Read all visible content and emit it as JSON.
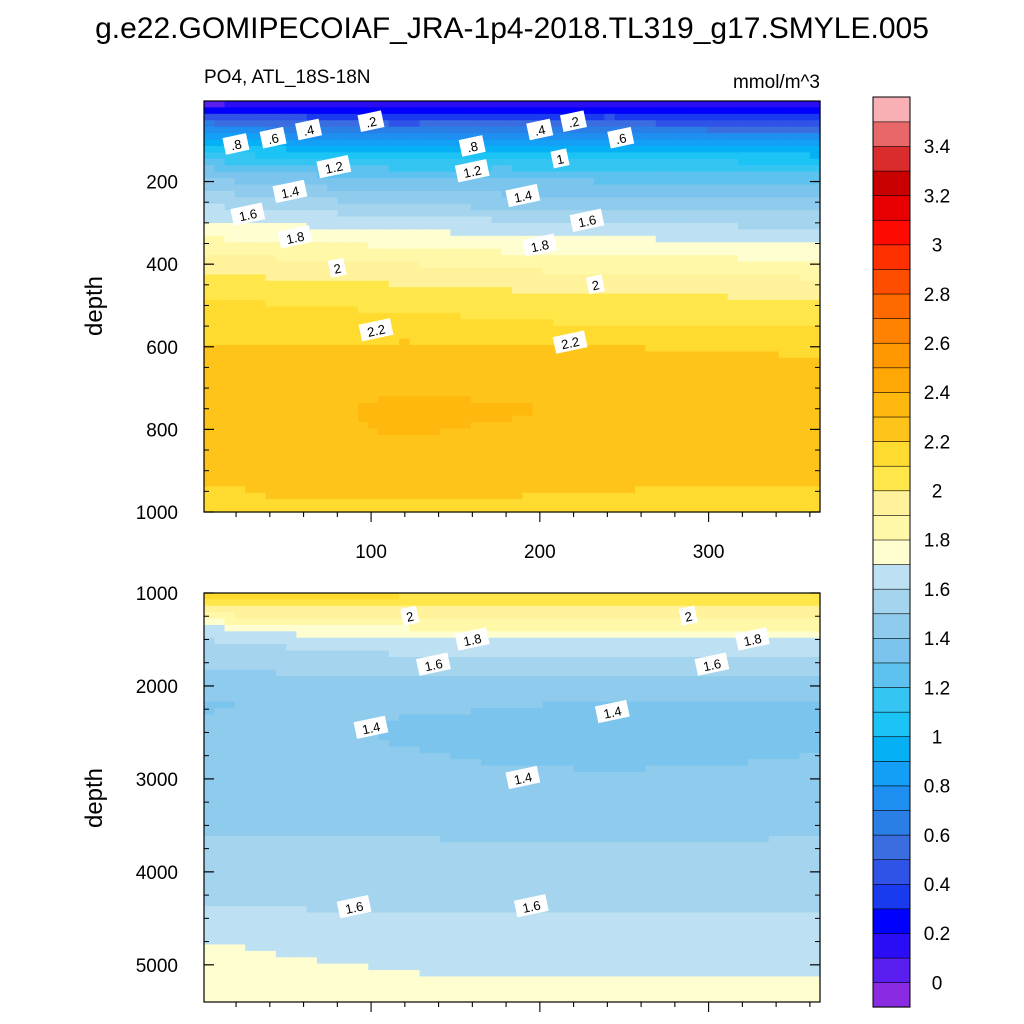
{
  "title": "g.e22.GOMIPECOIAF_JRA-1p4-2018.TL319_g17.SMYLE.005",
  "colorbar": {
    "levels": [
      -0.1,
      0,
      0.1,
      0.2,
      0.3,
      0.4,
      0.5,
      0.6,
      0.7,
      0.8,
      0.9,
      1.0,
      1.1,
      1.2,
      1.3,
      1.4,
      1.5,
      1.6,
      1.7,
      1.8,
      1.9,
      2.0,
      2.1,
      2.2,
      2.3,
      2.4,
      2.5,
      2.6,
      2.7,
      2.8,
      2.9,
      3.0,
      3.1,
      3.2,
      3.3,
      3.4,
      3.5,
      3.6
    ],
    "colors": [
      "#8a2be2",
      "#5a1ef0",
      "#2a0df5",
      "#0000ff",
      "#1a3af0",
      "#2f53e6",
      "#3a6ee0",
      "#2a7fe6",
      "#1e8ff0",
      "#129ff5",
      "#05b0f5",
      "#1cc3f5",
      "#35c5f2",
      "#5dc2ef",
      "#7ac4ee",
      "#8fcbec",
      "#a5d5ee",
      "#bde1f2",
      "#fffed0",
      "#fff8a8",
      "#fff29a",
      "#ffe74a",
      "#ffdb30",
      "#ffc41a",
      "#ffb80d",
      "#ffa805",
      "#ff9800",
      "#ff8200",
      "#ff6a00",
      "#ff4d00",
      "#ff3000",
      "#ff0a00",
      "#e80000",
      "#c80000",
      "#da2c2c",
      "#e8686a",
      "#f9b0b4"
    ],
    "tick_labels": [
      "0",
      "0.2",
      "0.4",
      "0.6",
      "0.8",
      "1",
      "1.2",
      "1.4",
      "1.6",
      "1.8",
      "2",
      "2.2",
      "2.4",
      "2.6",
      "2.8",
      "3",
      "3.2",
      "3.4"
    ],
    "tick_values": [
      0,
      0.2,
      0.4,
      0.6,
      0.8,
      1.0,
      1.2,
      1.4,
      1.6,
      1.8,
      2.0,
      2.2,
      2.4,
      2.6,
      2.8,
      3.0,
      3.2,
      3.4
    ]
  },
  "chart_data": [
    {
      "type": "heatmap",
      "variable_label": "PO4, ATL_18S-18N",
      "units": "mmol/m^3",
      "ylabel": "depth",
      "xlabel": "",
      "xlim": [
        1,
        366
      ],
      "ylim": [
        1000,
        5
      ],
      "x_tick_labels": [
        "100",
        "200",
        "300"
      ],
      "x_ticks": [
        100,
        200,
        300
      ],
      "y_tick_labels": [
        "200",
        "400",
        "600",
        "800",
        "1000"
      ],
      "y_ticks": [
        200,
        400,
        600,
        800,
        1000
      ],
      "x": [
        1,
        60,
        120,
        180,
        240,
        300,
        366
      ],
      "y": [
        5,
        25,
        50,
        75,
        100,
        125,
        150,
        175,
        200,
        250,
        300,
        350,
        400,
        450,
        500,
        550,
        600,
        650,
        700,
        750,
        800,
        850,
        900,
        950,
        1000
      ],
      "z": [
        [
          0.05,
          0.1,
          0.12,
          0.15,
          0.12,
          0.1,
          0.1
        ],
        [
          0.15,
          0.25,
          0.25,
          0.2,
          0.25,
          0.25,
          0.2
        ],
        [
          0.5,
          0.45,
          0.4,
          0.45,
          0.45,
          0.4,
          0.4
        ],
        [
          0.8,
          0.65,
          0.65,
          0.7,
          0.65,
          0.6,
          0.6
        ],
        [
          0.95,
          0.85,
          0.85,
          0.85,
          0.85,
          0.8,
          0.8
        ],
        [
          1.1,
          1.0,
          0.98,
          1.0,
          1.0,
          0.95,
          0.95
        ],
        [
          1.2,
          1.1,
          1.12,
          1.15,
          1.1,
          1.1,
          1.05
        ],
        [
          1.35,
          1.28,
          1.22,
          1.22,
          1.2,
          1.2,
          1.2
        ],
        [
          1.42,
          1.36,
          1.32,
          1.32,
          1.3,
          1.3,
          1.28
        ],
        [
          1.58,
          1.53,
          1.48,
          1.45,
          1.45,
          1.44,
          1.42
        ],
        [
          1.72,
          1.68,
          1.66,
          1.62,
          1.6,
          1.58,
          1.57
        ],
        [
          1.83,
          1.8,
          1.78,
          1.75,
          1.74,
          1.72,
          1.7
        ],
        [
          1.95,
          1.93,
          1.9,
          1.87,
          1.85,
          1.84,
          1.82
        ],
        [
          2.05,
          2.02,
          2.0,
          1.98,
          1.96,
          1.95,
          1.94
        ],
        [
          2.12,
          2.1,
          2.08,
          2.06,
          2.04,
          2.04,
          2.02
        ],
        [
          2.17,
          2.15,
          2.14,
          2.12,
          2.1,
          2.1,
          2.1
        ],
        [
          2.21,
          2.2,
          2.22,
          2.2,
          2.2,
          2.19,
          2.18
        ],
        [
          2.24,
          2.24,
          2.27,
          2.26,
          2.25,
          2.24,
          2.22
        ],
        [
          2.26,
          2.27,
          2.29,
          2.28,
          2.28,
          2.26,
          2.24
        ],
        [
          2.27,
          2.28,
          2.32,
          2.31,
          2.28,
          2.27,
          2.25
        ],
        [
          2.27,
          2.28,
          2.31,
          2.29,
          2.28,
          2.27,
          2.25
        ],
        [
          2.27,
          2.27,
          2.28,
          2.27,
          2.26,
          2.25,
          2.24
        ],
        [
          2.24,
          2.25,
          2.25,
          2.24,
          2.23,
          2.22,
          2.22
        ],
        [
          2.18,
          2.22,
          2.21,
          2.21,
          2.2,
          2.19,
          2.19
        ],
        [
          2.17,
          2.18,
          2.17,
          2.17,
          2.16,
          2.16,
          2.2
        ]
      ],
      "contour_labels": [
        {
          "text": ".2",
          "x": 100,
          "y": 55
        },
        {
          "text": ".2",
          "x": 220,
          "y": 55
        },
        {
          "text": ".4",
          "x": 63,
          "y": 75
        },
        {
          "text": ".4",
          "x": 200,
          "y": 75
        },
        {
          "text": ".6",
          "x": 42,
          "y": 95
        },
        {
          "text": ".6",
          "x": 248,
          "y": 95
        },
        {
          "text": ".8",
          "x": 20,
          "y": 110
        },
        {
          "text": ".8",
          "x": 160,
          "y": 115
        },
        {
          "text": "1",
          "x": 212,
          "y": 145
        },
        {
          "text": "1.2",
          "x": 78,
          "y": 165
        },
        {
          "text": "1.2",
          "x": 160,
          "y": 175
        },
        {
          "text": "1.4",
          "x": 52,
          "y": 225
        },
        {
          "text": "1.4",
          "x": 190,
          "y": 235
        },
        {
          "text": "1.6",
          "x": 27,
          "y": 280
        },
        {
          "text": "1.6",
          "x": 228,
          "y": 295
        },
        {
          "text": "1.8",
          "x": 55,
          "y": 335
        },
        {
          "text": "1.8",
          "x": 200,
          "y": 355
        },
        {
          "text": "2",
          "x": 80,
          "y": 410
        },
        {
          "text": "2",
          "x": 233,
          "y": 450
        },
        {
          "text": "2.2",
          "x": 103,
          "y": 560
        },
        {
          "text": "2.2",
          "x": 218,
          "y": 590
        }
      ]
    },
    {
      "type": "heatmap",
      "ylabel": "depth",
      "xlabel": "",
      "xlim": [
        1,
        366
      ],
      "ylim": [
        5400,
        1000
      ],
      "y_tick_labels": [
        "1000",
        "2000",
        "3000",
        "4000",
        "5000"
      ],
      "y_ticks": [
        1000,
        2000,
        3000,
        4000,
        5000
      ],
      "x": [
        1,
        60,
        120,
        180,
        240,
        300,
        366
      ],
      "y": [
        1000,
        1100,
        1200,
        1300,
        1400,
        1500,
        1600,
        1700,
        1800,
        2000,
        2200,
        2400,
        2600,
        2800,
        3000,
        3200,
        3400,
        3600,
        3800,
        4000,
        4200,
        4400,
        4600,
        4800,
        5000,
        5200,
        5400
      ],
      "z": [
        [
          2.15,
          2.14,
          2.13,
          2.12,
          2.12,
          2.11,
          2.11
        ],
        [
          2.05,
          2.05,
          2.04,
          2.04,
          2.03,
          2.03,
          2.03
        ],
        [
          1.95,
          1.96,
          1.96,
          1.95,
          1.95,
          1.95,
          1.94
        ],
        [
          1.8,
          1.86,
          1.87,
          1.87,
          1.87,
          1.86,
          1.86
        ],
        [
          1.65,
          1.75,
          1.78,
          1.79,
          1.79,
          1.79,
          1.79
        ],
        [
          1.6,
          1.66,
          1.69,
          1.71,
          1.71,
          1.71,
          1.71
        ],
        [
          1.55,
          1.6,
          1.63,
          1.64,
          1.64,
          1.64,
          1.64
        ],
        [
          1.52,
          1.55,
          1.58,
          1.58,
          1.58,
          1.58,
          1.58
        ],
        [
          1.5,
          1.52,
          1.53,
          1.53,
          1.53,
          1.53,
          1.53
        ],
        [
          1.45,
          1.47,
          1.48,
          1.47,
          1.46,
          1.46,
          1.47
        ],
        [
          1.38,
          1.44,
          1.44,
          1.41,
          1.38,
          1.38,
          1.39
        ],
        [
          1.42,
          1.43,
          1.38,
          1.36,
          1.36,
          1.37,
          1.38
        ],
        [
          1.44,
          1.44,
          1.39,
          1.37,
          1.36,
          1.37,
          1.38
        ],
        [
          1.45,
          1.45,
          1.42,
          1.39,
          1.38,
          1.39,
          1.41
        ],
        [
          1.46,
          1.46,
          1.44,
          1.42,
          1.42,
          1.42,
          1.43
        ],
        [
          1.47,
          1.47,
          1.46,
          1.45,
          1.45,
          1.45,
          1.46
        ],
        [
          1.49,
          1.48,
          1.48,
          1.47,
          1.47,
          1.47,
          1.48
        ],
        [
          1.5,
          1.5,
          1.5,
          1.49,
          1.49,
          1.49,
          1.5
        ],
        [
          1.52,
          1.51,
          1.51,
          1.51,
          1.51,
          1.51,
          1.52
        ],
        [
          1.55,
          1.53,
          1.53,
          1.53,
          1.53,
          1.53,
          1.54
        ],
        [
          1.58,
          1.57,
          1.56,
          1.56,
          1.56,
          1.56,
          1.57
        ],
        [
          1.61,
          1.6,
          1.59,
          1.59,
          1.59,
          1.59,
          1.59
        ],
        [
          1.65,
          1.62,
          1.62,
          1.62,
          1.62,
          1.62,
          1.62
        ],
        [
          1.72,
          1.66,
          1.65,
          1.64,
          1.64,
          1.65,
          1.65
        ],
        [
          1.75,
          1.72,
          1.68,
          1.67,
          1.67,
          1.68,
          1.68
        ],
        [
          1.78,
          1.75,
          1.73,
          1.71,
          1.71,
          1.71,
          1.72
        ],
        [
          1.8,
          1.78,
          1.76,
          1.75,
          1.74,
          1.74,
          1.75
        ]
      ],
      "contour_labels": [
        {
          "text": "2",
          "x": 123,
          "y": 1250
        },
        {
          "text": "2",
          "x": 288,
          "y": 1250
        },
        {
          "text": "1.8",
          "x": 160,
          "y": 1500
        },
        {
          "text": "1.8",
          "x": 326,
          "y": 1500
        },
        {
          "text": "1.6",
          "x": 137,
          "y": 1770
        },
        {
          "text": "1.6",
          "x": 302,
          "y": 1770
        },
        {
          "text": "1.4",
          "x": 100,
          "y": 2450
        },
        {
          "text": "1.4",
          "x": 243,
          "y": 2280
        },
        {
          "text": "1.4",
          "x": 190,
          "y": 2990
        },
        {
          "text": "1.6",
          "x": 90,
          "y": 4380
        },
        {
          "text": "1.6",
          "x": 195,
          "y": 4370
        }
      ]
    }
  ]
}
